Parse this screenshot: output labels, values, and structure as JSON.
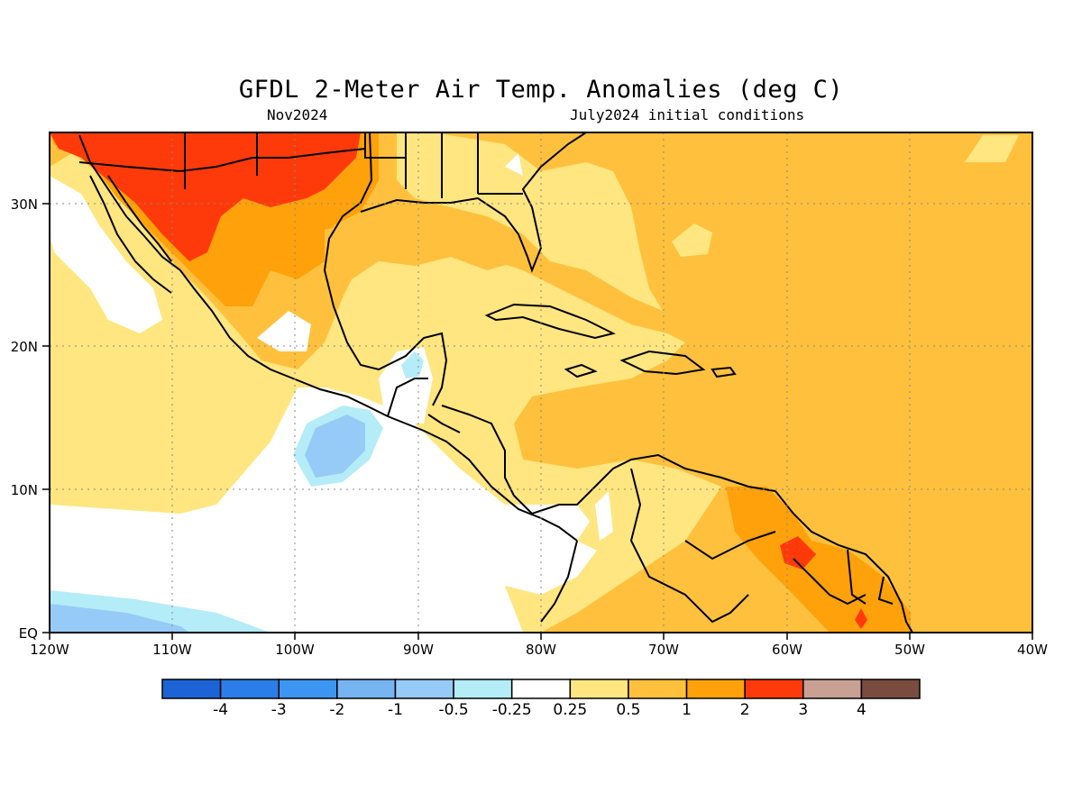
{
  "title": "GFDL 2-Meter Air Temp. Anomalies (deg C)",
  "subtitle_left": "Nov2024",
  "subtitle_right": "July2024 initial conditions",
  "lat_labels": [
    "EQ",
    "10N",
    "20N",
    "30N"
  ],
  "lon_labels": [
    "120W",
    "110W",
    "100W",
    "90W",
    "80W",
    "70W",
    "60W",
    "50W",
    "40W"
  ],
  "colorbar": {
    "colors": [
      "#1c64d6",
      "#2b7de8",
      "#3d95f2",
      "#76b4f2",
      "#96caf7",
      "#b4ecf7",
      "#ffffff",
      "#ffe680",
      "#ffc13d",
      "#ffa10a",
      "#ff3a0a",
      "#c8a094",
      "#7a4c40"
    ],
    "labels": [
      "-4",
      "-3",
      "-2",
      "-1",
      "-0.5",
      "-0.25",
      "0.25",
      "0.5",
      "1",
      "2",
      "3",
      "4"
    ]
  }
}
